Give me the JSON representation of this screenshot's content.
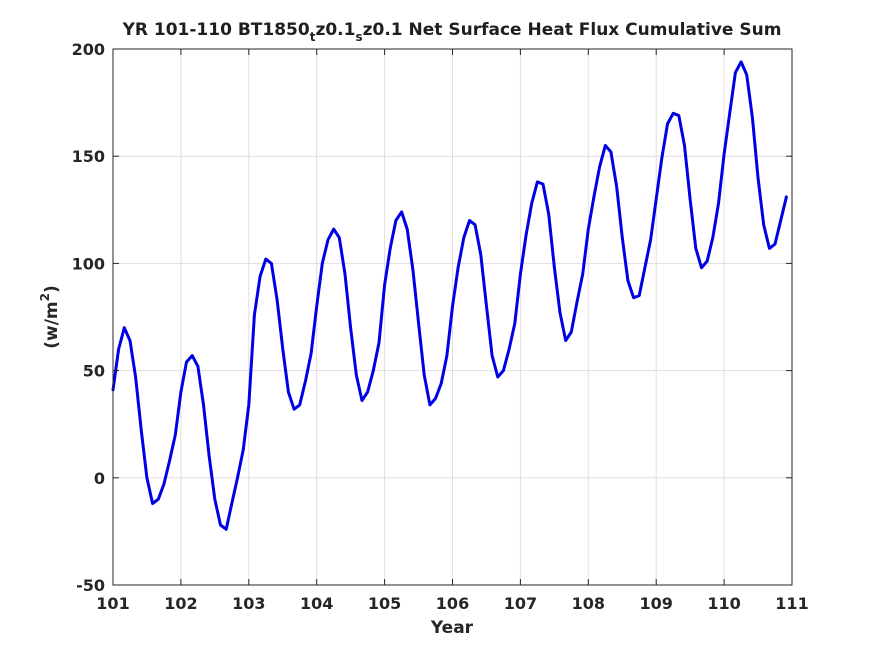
{
  "chart_data": {
    "type": "line",
    "title": {
      "pre": "YR 101-110 BT1850",
      "sub1": "t",
      "mid": "z0.1",
      "sub2": "s",
      "post": "z0.1 Net Surface Heat Flux  Cumulative Sum"
    },
    "xlabel": "Year",
    "ylabel": {
      "pre": "(w/m",
      "sup": "2",
      "post": ")"
    },
    "xlim": [
      101,
      111
    ],
    "ylim": [
      -50,
      200
    ],
    "xticks": [
      101,
      102,
      103,
      104,
      105,
      106,
      107,
      108,
      109,
      110,
      111
    ],
    "xtick_labels": [
      "101",
      "102",
      "103",
      "104",
      "105",
      "106",
      "107",
      "108",
      "109",
      "110",
      "111"
    ],
    "yticks": [
      -50,
      0,
      50,
      100,
      150,
      200
    ],
    "ytick_labels": [
      "-50",
      "0",
      "50",
      "100",
      "150",
      "200"
    ],
    "grid": true,
    "series": [
      {
        "color": "#0000e6",
        "x": [
          101.0,
          101.083,
          101.167,
          101.25,
          101.333,
          101.417,
          101.5,
          101.583,
          101.667,
          101.75,
          101.833,
          101.917,
          102.0,
          102.083,
          102.167,
          102.25,
          102.333,
          102.417,
          102.5,
          102.583,
          102.667,
          102.75,
          102.833,
          102.917,
          103.0,
          103.083,
          103.167,
          103.25,
          103.333,
          103.417,
          103.5,
          103.583,
          103.667,
          103.75,
          103.833,
          103.917,
          104.0,
          104.083,
          104.167,
          104.25,
          104.333,
          104.417,
          104.5,
          104.583,
          104.667,
          104.75,
          104.833,
          104.917,
          105.0,
          105.083,
          105.167,
          105.25,
          105.333,
          105.417,
          105.5,
          105.583,
          105.667,
          105.75,
          105.833,
          105.917,
          106.0,
          106.083,
          106.167,
          106.25,
          106.333,
          106.417,
          106.5,
          106.583,
          106.667,
          106.75,
          106.833,
          106.917,
          107.0,
          107.083,
          107.167,
          107.25,
          107.333,
          107.417,
          107.5,
          107.583,
          107.667,
          107.75,
          107.833,
          107.917,
          108.0,
          108.083,
          108.167,
          108.25,
          108.333,
          108.417,
          108.5,
          108.583,
          108.667,
          108.75,
          108.833,
          108.917,
          109.0,
          109.083,
          109.167,
          109.25,
          109.333,
          109.417,
          109.5,
          109.583,
          109.667,
          109.75,
          109.833,
          109.917,
          110.0,
          110.083,
          110.167,
          110.25,
          110.333,
          110.417,
          110.5,
          110.583,
          110.667,
          110.75,
          110.833,
          110.917
        ],
        "y": [
          41,
          60,
          70,
          64,
          47,
          22,
          0,
          -12,
          -10,
          -3,
          8,
          20,
          40,
          54,
          57,
          52,
          34,
          10,
          -10,
          -22,
          -24,
          -12,
          0,
          13,
          34,
          76,
          94,
          102,
          100,
          83,
          60,
          40,
          32,
          34,
          45,
          58,
          80,
          100,
          111,
          116,
          112,
          95,
          70,
          48,
          36,
          40,
          50,
          63,
          90,
          107,
          120,
          124,
          116,
          97,
          72,
          48,
          34,
          37,
          44,
          57,
          80,
          98,
          112,
          120,
          118,
          104,
          80,
          57,
          47,
          50,
          60,
          72,
          95,
          113,
          128,
          138,
          137,
          123,
          98,
          77,
          64,
          68,
          82,
          95,
          116,
          131,
          145,
          155,
          152,
          136,
          112,
          92,
          84,
          85,
          98,
          111,
          130,
          149,
          165,
          170,
          169,
          155,
          130,
          107,
          98,
          101,
          112,
          128,
          151,
          170,
          189,
          194,
          188,
          168,
          140,
          118,
          107,
          109,
          120,
          131
        ]
      }
    ]
  }
}
